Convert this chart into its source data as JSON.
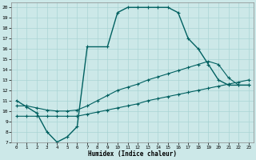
{
  "xlabel": "Humidex (Indice chaleur)",
  "bg_color": "#cce8e8",
  "line_color": "#006060",
  "xlim": [
    -0.5,
    23.5
  ],
  "ylim": [
    7,
    20.5
  ],
  "yticks": [
    7,
    8,
    9,
    10,
    11,
    12,
    13,
    14,
    15,
    16,
    17,
    18,
    19,
    20
  ],
  "xticks": [
    0,
    1,
    2,
    3,
    4,
    5,
    6,
    7,
    8,
    9,
    10,
    11,
    12,
    13,
    14,
    15,
    16,
    17,
    18,
    19,
    20,
    21,
    22,
    23
  ],
  "curve1_x": [
    0,
    1,
    2,
    3,
    4,
    5,
    6,
    7,
    9,
    10,
    11,
    12,
    13,
    14,
    15,
    16,
    17,
    18,
    19,
    20,
    21,
    22,
    23
  ],
  "curve1_y": [
    11,
    10.4,
    9.8,
    8.0,
    7.0,
    7.5,
    8.5,
    16.2,
    16.2,
    19.5,
    20.0,
    20.0,
    20.0,
    20.0,
    20.0,
    19.5,
    17.0,
    16.0,
    14.5,
    13.0,
    12.5,
    12.5,
    12.5
  ],
  "curve2_x": [
    0,
    1,
    2,
    3,
    4,
    5,
    6,
    7,
    8,
    9,
    10,
    11,
    12,
    13,
    14,
    15,
    16,
    17,
    18,
    19,
    20,
    21,
    22,
    23
  ],
  "curve2_y": [
    10.5,
    10.5,
    10.3,
    10.1,
    10.0,
    10.0,
    10.1,
    10.5,
    11.0,
    11.5,
    12.0,
    12.3,
    12.6,
    13.0,
    13.3,
    13.6,
    13.9,
    14.2,
    14.5,
    14.8,
    14.5,
    13.2,
    12.5,
    12.5
  ],
  "curve3_x": [
    0,
    1,
    2,
    3,
    4,
    5,
    6,
    7,
    8,
    9,
    10,
    11,
    12,
    13,
    14,
    15,
    16,
    17,
    18,
    19,
    20,
    21,
    22,
    23
  ],
  "curve3_y": [
    9.5,
    9.5,
    9.5,
    9.5,
    9.5,
    9.5,
    9.5,
    9.7,
    9.9,
    10.1,
    10.3,
    10.5,
    10.7,
    11.0,
    11.2,
    11.4,
    11.6,
    11.8,
    12.0,
    12.2,
    12.4,
    12.6,
    12.8,
    13.0
  ],
  "grid_color": "#aad4d4",
  "marker_size": 3.0,
  "lw_main": 1.0,
  "lw_secondary": 0.8
}
